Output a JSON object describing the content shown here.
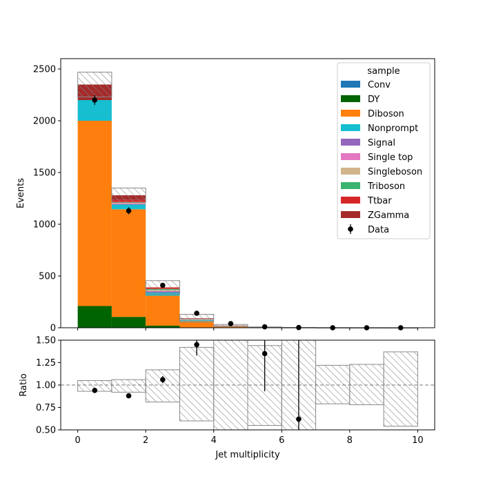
{
  "chart_data": [
    {
      "type": "bar",
      "stacked": true,
      "xlabel": "",
      "ylabel": "Events",
      "xlim": [
        -0.5,
        10.5
      ],
      "ylim": [
        0,
        2600
      ],
      "yticks": [
        0,
        500,
        1000,
        1500,
        2000,
        2500
      ],
      "bin_edges": [
        0,
        1,
        2,
        3,
        4,
        5,
        6,
        7,
        8,
        9,
        10
      ],
      "legend": {
        "title": "sample",
        "placement": "top-right",
        "data_label": "Data"
      },
      "series": [
        {
          "name": "Conv",
          "color": "#1f77b4",
          "values": [
            0,
            0,
            0,
            0,
            0,
            0,
            0,
            0,
            0,
            0
          ]
        },
        {
          "name": "DY",
          "color": "#006400",
          "values": [
            210,
            105,
            20,
            3,
            1,
            0,
            0,
            0,
            0,
            0
          ]
        },
        {
          "name": "Diboson",
          "color": "#ff7f0e",
          "values": [
            1790,
            1040,
            290,
            62,
            12,
            3,
            1,
            0.5,
            0.2,
            0.1
          ]
        },
        {
          "name": "Nonprompt",
          "color": "#17becf",
          "values": [
            200,
            45,
            30,
            8,
            2,
            1,
            0.5,
            0,
            0,
            0
          ]
        },
        {
          "name": "Signal",
          "color": "#9467bd",
          "values": [
            0,
            5,
            10,
            3,
            1,
            0,
            0,
            0,
            0,
            0
          ]
        },
        {
          "name": "Single top",
          "color": "#e377c2",
          "values": [
            0,
            5,
            5,
            2,
            1,
            0,
            0,
            0,
            0,
            0
          ]
        },
        {
          "name": "Singleboson",
          "color": "#d2b48c",
          "values": [
            0,
            10,
            10,
            4,
            1,
            0,
            0,
            0,
            0,
            0
          ]
        },
        {
          "name": "Triboson",
          "color": "#3cb371",
          "values": [
            0,
            5,
            10,
            4,
            1,
            0,
            0,
            0,
            0,
            0
          ]
        },
        {
          "name": "Ttbar",
          "color": "#d62728",
          "values": [
            0,
            20,
            15,
            5,
            2,
            1,
            0,
            0,
            0,
            0
          ]
        },
        {
          "name": "ZGamma",
          "color": "#a52a2a",
          "values": [
            150,
            45,
            0,
            1,
            1,
            0,
            0,
            0,
            0,
            0
          ]
        }
      ],
      "mc_total": [
        2350,
        1280,
        390,
        92,
        22,
        5,
        1.5,
        0.5,
        0.2,
        0.1
      ],
      "mc_unc_up": [
        2470,
        1350,
        455,
        130,
        32,
        8,
        3,
        1,
        0.5,
        0.3
      ],
      "mc_unc_down": [
        2230,
        1210,
        325,
        55,
        12,
        3,
        0.5,
        0.2,
        0.1,
        0.05
      ],
      "data": {
        "name": "Data",
        "x": [
          0.5,
          1.5,
          2.5,
          3.5,
          4.5,
          5.5,
          6.5,
          7.5,
          8.5,
          9.5
        ],
        "y": [
          2200,
          1130,
          410,
          140,
          40,
          9,
          2,
          0,
          0,
          0
        ],
        "yerr": [
          47,
          34,
          20,
          12,
          6,
          3,
          1.4,
          0,
          0,
          0
        ]
      }
    },
    {
      "type": "scatter",
      "xlabel": "Jet multiplicity",
      "ylabel": "Ratio",
      "xlim": [
        -0.5,
        10.5
      ],
      "ylim": [
        0.5,
        1.5
      ],
      "xticks": [
        0,
        2,
        4,
        6,
        8,
        10
      ],
      "yticks": [
        0.5,
        0.75,
        1.0,
        1.25,
        1.5
      ],
      "ytick_labels": [
        "0.50",
        "0.75",
        "1.00",
        "1.25",
        "1.50"
      ],
      "reference_line": 1.0,
      "bin_edges": [
        0,
        1,
        2,
        3,
        4,
        5,
        6,
        7,
        8,
        9,
        10
      ],
      "unc_band_up": [
        1.05,
        1.06,
        1.17,
        1.42,
        1.5,
        1.44,
        1.5,
        1.22,
        1.23,
        1.37
      ],
      "unc_band_down": [
        0.93,
        0.92,
        0.81,
        0.6,
        0.5,
        0.55,
        0.5,
        0.79,
        0.78,
        0.54
      ],
      "points": {
        "x": [
          0.5,
          1.5,
          2.5,
          3.5,
          5.5,
          6.5
        ],
        "y": [
          0.94,
          0.88,
          1.06,
          1.45,
          1.35,
          0.62
        ],
        "yerr_low": [
          0.02,
          0.02,
          0.04,
          0.12,
          0.42,
          0.35
        ],
        "yerr_high": [
          0.02,
          0.02,
          0.04,
          0.12,
          0.42,
          1.0
        ]
      }
    }
  ]
}
